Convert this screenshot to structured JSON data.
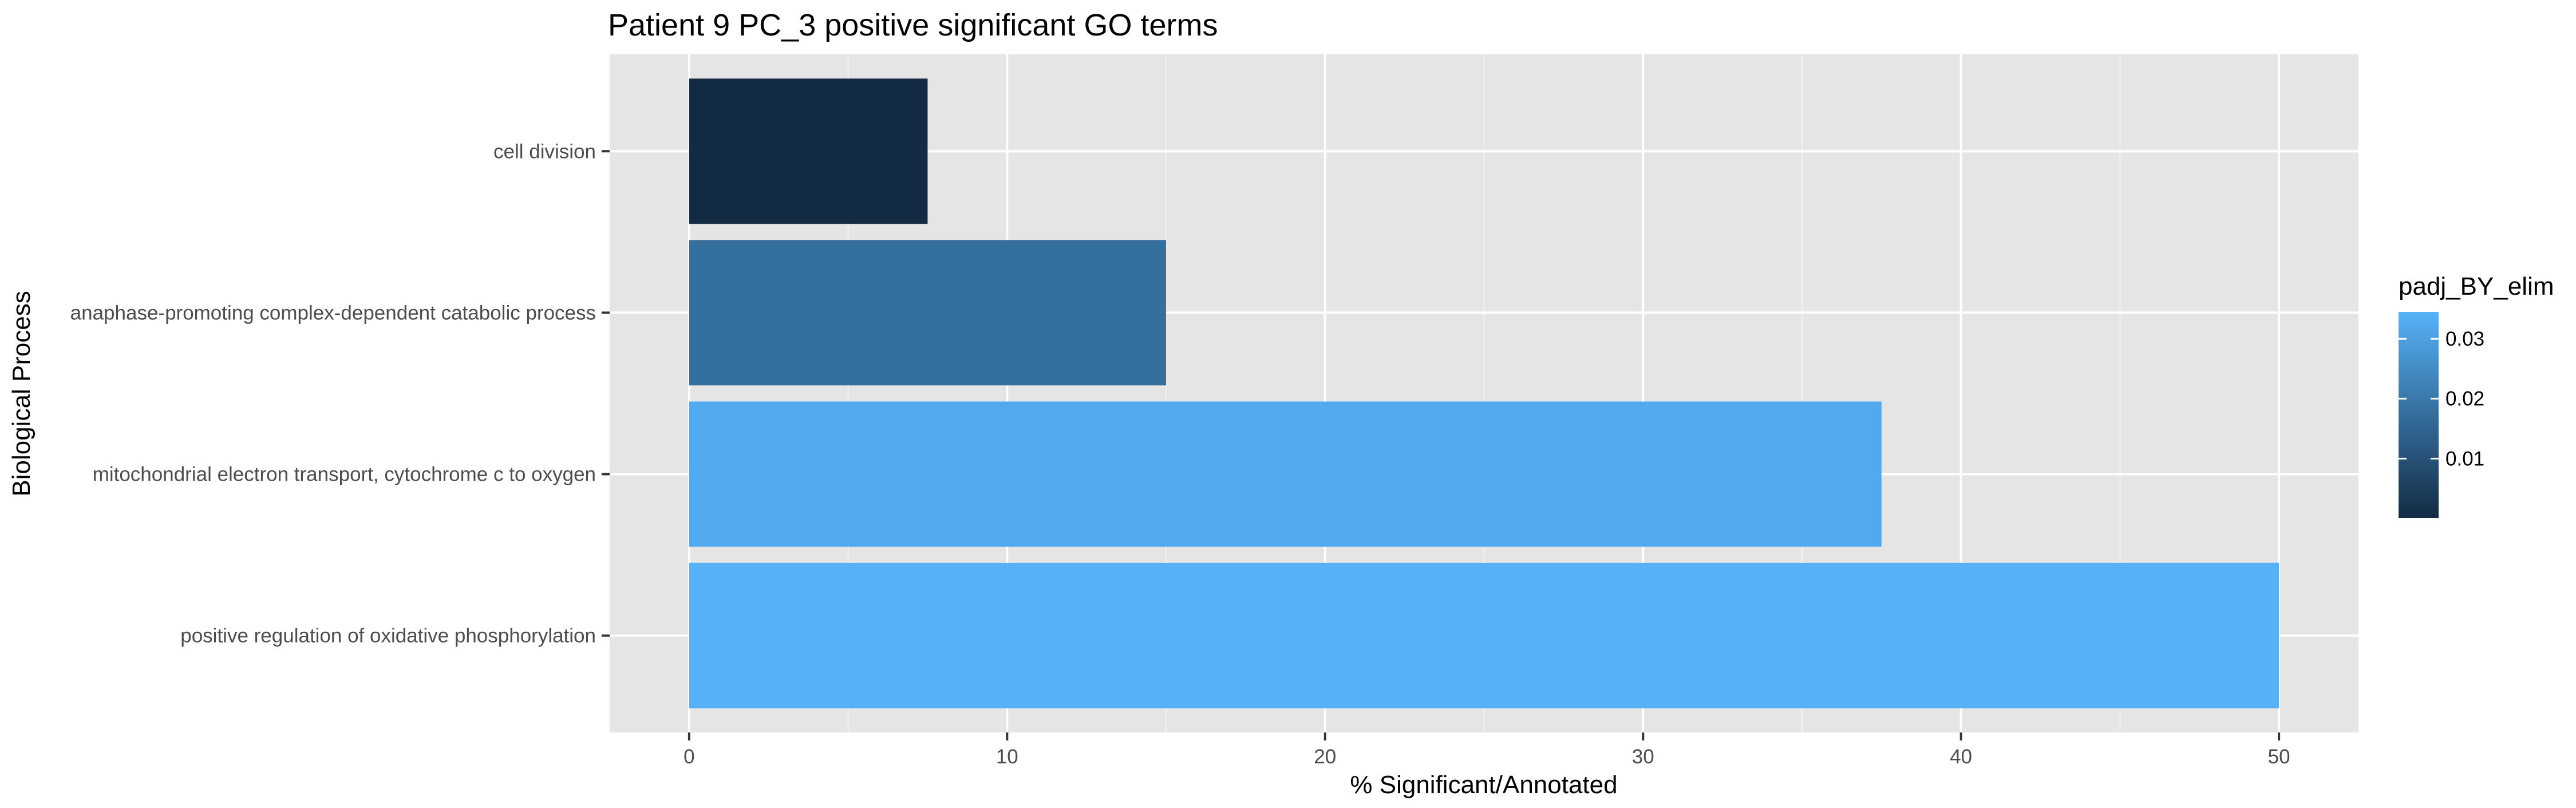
{
  "chart_data": {
    "type": "bar",
    "orientation": "horizontal",
    "title": "Patient 9 PC_3 positive significant GO terms",
    "xlabel": "% Significant/Annotated",
    "ylabel": "Biological Process",
    "categories": [
      "cell division",
      "anaphase-promoting complex-dependent catabolic process",
      "mitochondrial electron transport, cytochrome c to oxygen",
      "positive regulation of oxidative phosphorylation"
    ],
    "values": [
      7.5,
      15.0,
      37.5,
      50.0
    ],
    "color_values": [
      0.0001,
      0.0175,
      0.0325,
      0.0345
    ],
    "xlim": [
      -2.5,
      52.5
    ],
    "xticks": [
      0,
      10,
      20,
      30,
      40,
      50
    ],
    "grid": true,
    "background": "#e5e5e5",
    "legend": {
      "title": "padj_BY_elim",
      "position": "right",
      "ticks": [
        {
          "value": 0.01,
          "label": "0.01"
        },
        {
          "value": 0.02,
          "label": "0.02"
        },
        {
          "value": 0.03,
          "label": "0.03"
        }
      ],
      "range": [
        0.0001,
        0.0345
      ],
      "low_color": "#132b43",
      "high_color": "#56b1f7"
    }
  }
}
